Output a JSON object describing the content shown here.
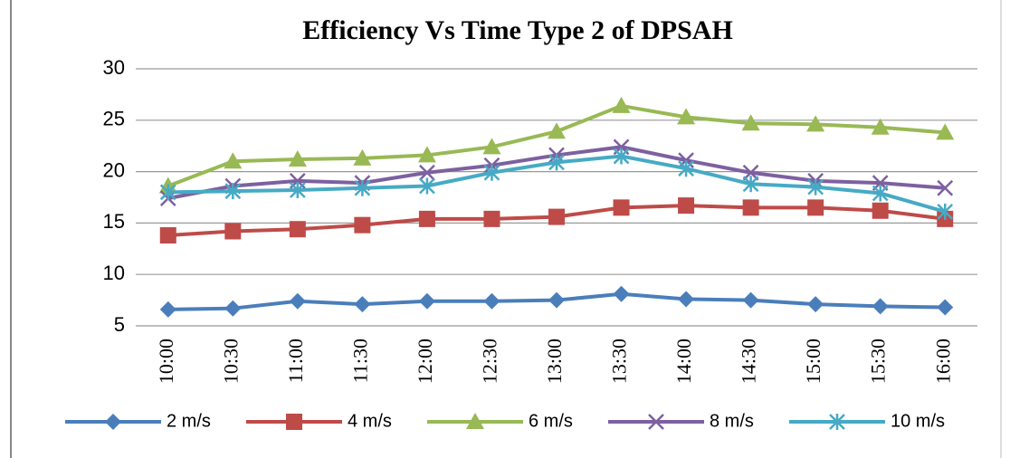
{
  "chart_data": {
    "type": "line",
    "title": "Efficiency Vs Time Type 2 of DPSAH",
    "categories": [
      "10:00",
      "10:30",
      "11:00",
      "11:30",
      "12:00",
      "12:30",
      "13:00",
      "13:30",
      "14:00",
      "14:30",
      "15:00",
      "15:30",
      "16:00"
    ],
    "series": [
      {
        "name": "2 m/s",
        "color": "#4a7ebb",
        "marker": "diamond",
        "values": [
          6.6,
          6.7,
          7.4,
          7.1,
          7.4,
          7.4,
          7.5,
          8.1,
          7.6,
          7.5,
          7.1,
          6.9,
          6.8
        ]
      },
      {
        "name": "4 m/s",
        "color": "#be4b48",
        "marker": "square",
        "values": [
          13.8,
          14.2,
          14.4,
          14.8,
          15.4,
          15.4,
          15.6,
          16.5,
          16.7,
          16.5,
          16.5,
          16.2,
          15.4
        ]
      },
      {
        "name": "6 m/s",
        "color": "#98b954",
        "marker": "triangle",
        "values": [
          18.6,
          21,
          21.2,
          21.3,
          21.6,
          22.4,
          23.9,
          26.4,
          25.3,
          24.7,
          24.6,
          24.3,
          23.8
        ]
      },
      {
        "name": "8 m/s",
        "color": "#7d60a0",
        "marker": "x",
        "values": [
          17.4,
          18.6,
          19.1,
          18.9,
          19.9,
          20.6,
          21.6,
          22.4,
          21.1,
          19.9,
          19.1,
          18.9,
          18.4
        ]
      },
      {
        "name": "10 m/s",
        "color": "#46aac5",
        "marker": "star",
        "values": [
          18,
          18.1,
          18.2,
          18.4,
          18.6,
          19.9,
          20.9,
          21.5,
          20.3,
          18.8,
          18.5,
          17.9,
          16.1
        ]
      }
    ],
    "ylim": [
      5,
      30
    ],
    "yticks": [
      5,
      10,
      15,
      20,
      25,
      30
    ],
    "grid": true,
    "legend": "bottom"
  }
}
